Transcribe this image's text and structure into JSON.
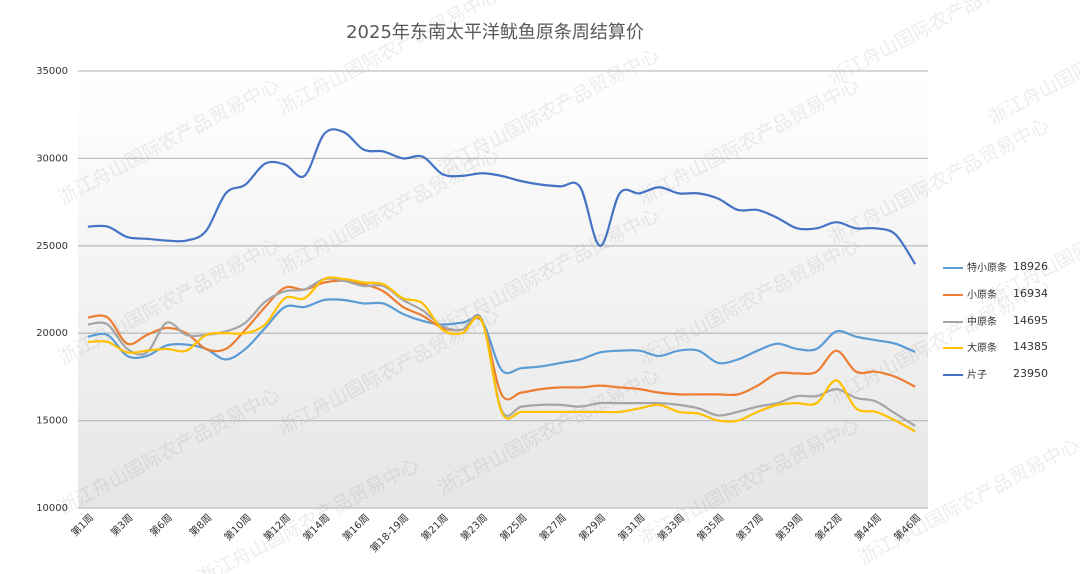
{
  "chart_data": {
    "type": "line",
    "title": "2025年东南太平洋鱿鱼原条周结算价",
    "watermark": "浙江舟山国际农产品贸易中心",
    "categories": [
      "第1周",
      null,
      "第3周",
      null,
      "第6周",
      null,
      "第8周",
      null,
      "第10周",
      null,
      "第12周",
      null,
      "第14周",
      null,
      "第16周",
      null,
      "第18-19周",
      null,
      "第21周",
      null,
      "第23周",
      null,
      "第25周",
      null,
      "第27周",
      null,
      "第29周",
      null,
      "第31周",
      null,
      "第33周",
      null,
      "第35周",
      null,
      "第37周",
      null,
      "第39周",
      null,
      "第42周",
      null,
      "第44周",
      null,
      "第46周"
    ],
    "ylim": [
      10000,
      35000
    ],
    "yticks": [
      10000,
      15000,
      20000,
      25000,
      30000,
      35000
    ],
    "grid": true,
    "legend": "right",
    "series": [
      {
        "name": "特小原条",
        "color": "#5b9bd5",
        "values": [
          19800,
          19900,
          18700,
          18700,
          19300,
          19350,
          19100,
          18500,
          19100,
          20300,
          21500,
          21500,
          21900,
          21900,
          21700,
          21700,
          21100,
          20700,
          20500,
          20600,
          20700,
          17900,
          18000,
          18100,
          18300,
          18500,
          18900,
          19000,
          19000,
          18700,
          19000,
          19000,
          18300,
          18500,
          19000,
          19400,
          19100,
          19100,
          20100,
          19800,
          19600,
          19400,
          18926
        ]
      },
      {
        "name": "小原条",
        "color": "#ed7d31",
        "values": [
          20900,
          20900,
          19400,
          19900,
          20300,
          20000,
          19100,
          19100,
          20200,
          21500,
          22600,
          22500,
          22900,
          23000,
          22800,
          22400,
          21500,
          21000,
          20300,
          20200,
          20700,
          16500,
          16600,
          16800,
          16900,
          16900,
          17000,
          16900,
          16800,
          16600,
          16500,
          16500,
          16500,
          16500,
          17000,
          17700,
          17700,
          17800,
          19000,
          17800,
          17800,
          17500,
          16934
        ]
      },
      {
        "name": "中原条",
        "color": "#a5a5a5",
        "values": [
          20500,
          20500,
          19100,
          18900,
          20600,
          19900,
          19900,
          20100,
          20600,
          21800,
          22400,
          22500,
          23100,
          23000,
          22700,
          22700,
          21900,
          21300,
          20400,
          20200,
          20800,
          15600,
          15800,
          15900,
          15900,
          15800,
          16000,
          16000,
          16000,
          16000,
          15900,
          15700,
          15300,
          15500,
          15800,
          16000,
          16400,
          16400,
          16800,
          16300,
          16100,
          15400,
          14695
        ]
      },
      {
        "name": "大原条",
        "color": "#ffc000",
        "values": [
          19500,
          19500,
          18900,
          19000,
          19100,
          19000,
          19900,
          20000,
          20000,
          20500,
          22000,
          22000,
          23100,
          23100,
          22900,
          22800,
          22000,
          21700,
          20200,
          20000,
          20700,
          15500,
          15500,
          15500,
          15500,
          15500,
          15500,
          15500,
          15700,
          15900,
          15500,
          15400,
          15000,
          15000,
          15500,
          15900,
          16000,
          16000,
          17300,
          15700,
          15500,
          15000,
          14385
        ]
      },
      {
        "name": "片子",
        "color": "#4472c4",
        "values": [
          26100,
          26100,
          25500,
          25400,
          25300,
          25300,
          25850,
          28000,
          28500,
          29700,
          29650,
          29000,
          31400,
          31500,
          30500,
          30400,
          30000,
          30100,
          29100,
          29000,
          29150,
          29000,
          28700,
          28500,
          28400,
          28350,
          25000,
          28000,
          28000,
          28350,
          28000,
          28000,
          27700,
          27050,
          27050,
          26600,
          26000,
          26000,
          26350,
          26000,
          26000,
          25650,
          23950
        ]
      }
    ]
  }
}
